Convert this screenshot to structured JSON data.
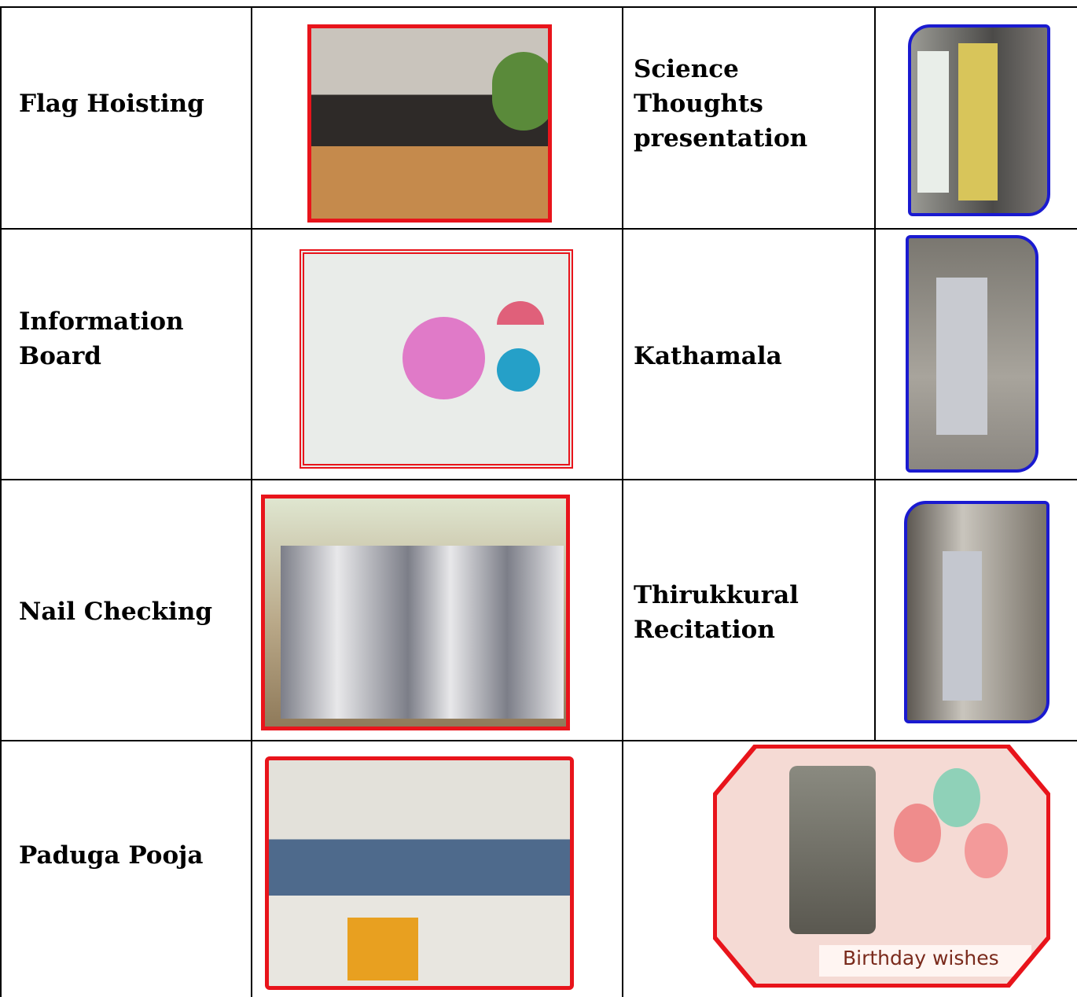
{
  "table": {
    "rows": [
      {
        "label": "Flag Hoisting",
        "right_label": "Science Thoughts presentation"
      },
      {
        "label": "Information Board",
        "right_label": "Kathamala"
      },
      {
        "label": "Nail Checking",
        "right_label": "Thirukkural Recitation"
      },
      {
        "label": "Paduga Pooja",
        "image_caption": "Birthday wishes"
      }
    ]
  }
}
